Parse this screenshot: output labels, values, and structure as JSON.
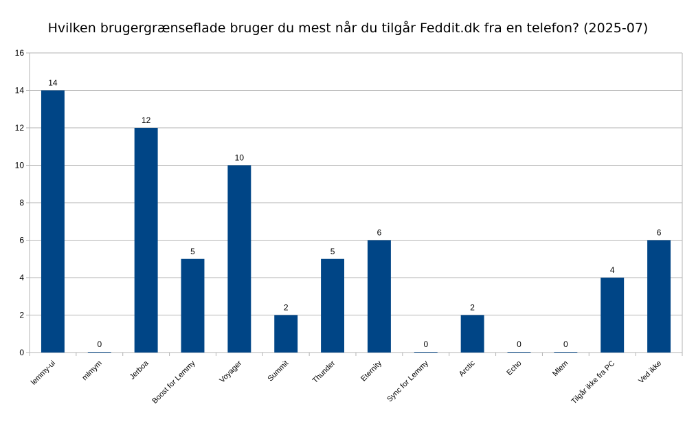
{
  "chart_data": {
    "type": "bar",
    "title": "Hvilken brugergrænseflade bruger du mest når du tilgår Feddit.dk fra en telefon? (2025-07)",
    "categories": [
      "lemmy-ui",
      "mlmym",
      "Jerboa",
      "Boost for Lemmy",
      "Voyager",
      "Summit",
      "Thunder",
      "Eternity",
      "Sync for Lemmy",
      "Arctic",
      "Echo",
      "Mlem",
      "Tilgår ikke fra PC",
      "Ved ikke"
    ],
    "values": [
      14,
      0,
      12,
      5,
      10,
      2,
      5,
      6,
      0,
      2,
      0,
      0,
      4,
      6
    ],
    "ylim": [
      0,
      16
    ],
    "yticks": [
      0,
      2,
      4,
      6,
      8,
      10,
      12,
      14,
      16
    ],
    "grid": true,
    "legend": "none",
    "bar_color": "#004586",
    "grid_color": "#b3b3b3"
  }
}
